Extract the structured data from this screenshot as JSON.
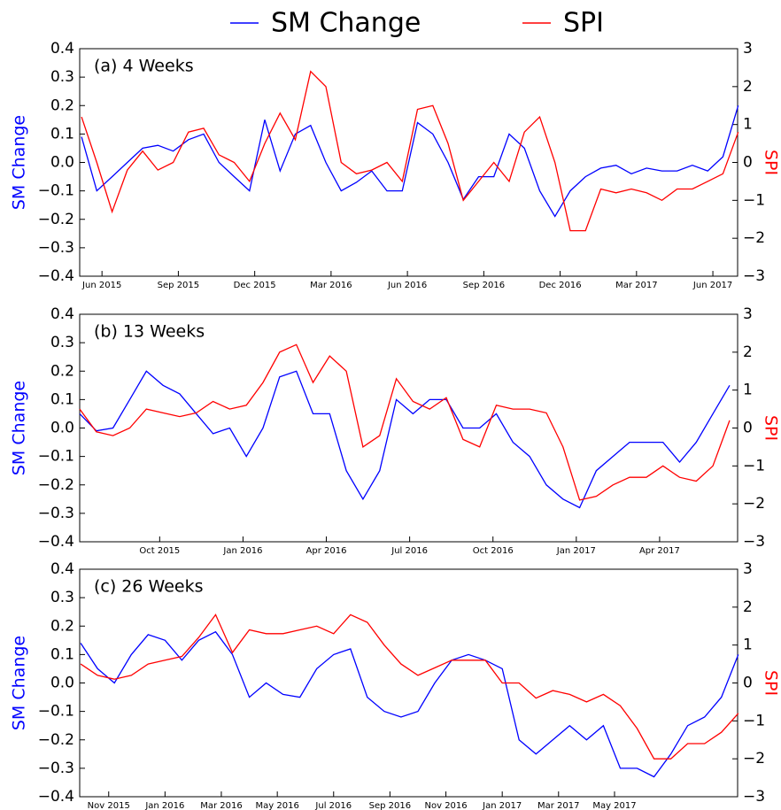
{
  "chart_data": [
    {
      "type": "line",
      "title": "(a) 4 Weeks",
      "ylabel": "SM Change",
      "y2label": "SPI",
      "x": [
        2015.35,
        2015.4,
        2015.45,
        2015.5,
        2015.55,
        2015.6,
        2015.65,
        2015.7,
        2015.75,
        2015.8,
        2015.85,
        2015.9,
        2015.95,
        2016.0,
        2016.05,
        2016.1,
        2016.15,
        2016.2,
        2016.25,
        2016.3,
        2016.35,
        2016.4,
        2016.45,
        2016.5,
        2016.55,
        2016.6,
        2016.65,
        2016.7,
        2016.75,
        2016.8,
        2016.85,
        2016.9,
        2016.95,
        2017.0,
        2017.05,
        2017.1,
        2017.15,
        2017.2,
        2017.25,
        2017.3,
        2017.35,
        2017.4,
        2017.45,
        2017.5
      ],
      "series": [
        {
          "name": "SM Change",
          "color": "#0000ff",
          "values": [
            0.09,
            -0.1,
            -0.05,
            0.0,
            0.05,
            0.06,
            0.04,
            0.08,
            0.1,
            0.0,
            -0.05,
            -0.1,
            0.15,
            -0.03,
            0.1,
            0.13,
            0.0,
            -0.1,
            -0.07,
            -0.03,
            -0.1,
            -0.1,
            0.14,
            0.1,
            0.0,
            -0.13,
            -0.05,
            -0.05,
            0.1,
            0.05,
            -0.1,
            -0.19,
            -0.1,
            -0.05,
            -0.02,
            -0.01,
            -0.04,
            -0.02,
            -0.03,
            -0.03,
            -0.01,
            -0.03,
            0.02,
            0.2
          ]
        },
        {
          "name": "SPI",
          "color": "#ff0000",
          "axis": "y2",
          "values": [
            1.2,
            0,
            -1.3,
            -0.2,
            0.3,
            -0.2,
            0.0,
            0.8,
            0.9,
            0.2,
            0.0,
            -0.5,
            0.5,
            1.3,
            0.6,
            2.4,
            2.0,
            0.0,
            -0.3,
            -0.2,
            0.0,
            -0.5,
            1.4,
            1.5,
            0.5,
            -1.0,
            -0.5,
            0.0,
            -0.5,
            0.8,
            1.2,
            0.0,
            -1.8,
            -1.8,
            -0.7,
            -0.8,
            -0.7,
            -0.8,
            -1.0,
            -0.7,
            -0.7,
            -0.5,
            -0.3,
            0.8
          ]
        }
      ],
      "xlim": [
        2015.344,
        2017.498
      ],
      "xticks": [
        {
          "value": 2015.417,
          "label": "Jun 2015"
        },
        {
          "value": 2015.667,
          "label": "Sep 2015"
        },
        {
          "value": 2015.917,
          "label": "Dec 2015"
        },
        {
          "value": 2016.167,
          "label": "Mar 2016"
        },
        {
          "value": 2016.417,
          "label": "Jun 2016"
        },
        {
          "value": 2016.667,
          "label": "Sep 2016"
        },
        {
          "value": 2016.917,
          "label": "Dec 2016"
        },
        {
          "value": 2017.167,
          "label": "Mar 2017"
        },
        {
          "value": 2017.417,
          "label": "Jun 2017"
        }
      ],
      "ylim": [
        -0.4,
        0.4
      ],
      "yticks": [
        {
          "value": -0.4,
          "label": "−0.4"
        },
        {
          "value": -0.3,
          "label": "−0.3"
        },
        {
          "value": -0.2,
          "label": "−0.2"
        },
        {
          "value": -0.1,
          "label": "−0.1"
        },
        {
          "value": 0.0,
          "label": "0.0"
        },
        {
          "value": 0.1,
          "label": "0.1"
        },
        {
          "value": 0.2,
          "label": "0.2"
        },
        {
          "value": 0.3,
          "label": "0.3"
        },
        {
          "value": 0.4,
          "label": "0.4"
        }
      ],
      "y2lim": [
        -3,
        3
      ],
      "y2ticks": [
        {
          "value": -3,
          "label": "−3"
        },
        {
          "value": -2,
          "label": "−2"
        },
        {
          "value": -1,
          "label": "−1"
        },
        0,
        1,
        2,
        3
      ]
    },
    {
      "type": "line",
      "title": "(b) 13 Weeks",
      "ylabel": "SM Change",
      "y2label": "SPI",
      "x": [
        2015.51,
        2015.56,
        2015.61,
        2015.66,
        2015.71,
        2015.76,
        2015.81,
        2015.86,
        2015.91,
        2015.96,
        2016.01,
        2016.06,
        2016.11,
        2016.16,
        2016.21,
        2016.26,
        2016.31,
        2016.36,
        2016.41,
        2016.46,
        2016.51,
        2016.56,
        2016.61,
        2016.66,
        2016.71,
        2016.76,
        2016.81,
        2016.86,
        2016.91,
        2016.96,
        2017.01,
        2017.06,
        2017.11,
        2017.16,
        2017.21,
        2017.26,
        2017.31,
        2017.36,
        2017.41,
        2017.46
      ],
      "series": [
        {
          "color": "#0000ff",
          "values": [
            0.05,
            -0.01,
            0.0,
            0.1,
            0.2,
            0.15,
            0.12,
            0.05,
            -0.02,
            0.0,
            -0.1,
            0.0,
            0.18,
            0.2,
            0.05,
            0.05,
            -0.15,
            -0.25,
            -0.15,
            0.1,
            0.05,
            0.1,
            0.1,
            0.0,
            0.0,
            0.05,
            -0.05,
            -0.1,
            -0.2,
            -0.25,
            -0.28,
            -0.15,
            -0.1,
            -0.05,
            -0.05,
            -0.05,
            -0.12,
            -0.05,
            0.05,
            0.15
          ]
        },
        {
          "color": "#ff0000",
          "axis": "y2",
          "values": [
            0.5,
            -0.1,
            -0.2,
            0.0,
            0.5,
            0.4,
            0.3,
            0.4,
            0.7,
            0.5,
            0.6,
            1.2,
            2.0,
            2.2,
            1.2,
            1.9,
            1.5,
            -0.5,
            -0.2,
            1.3,
            0.7,
            0.5,
            0.8,
            -0.3,
            -0.5,
            0.6,
            0.5,
            0.5,
            0.4,
            -0.5,
            -1.9,
            -1.8,
            -1.5,
            -1.3,
            -1.3,
            -1.0,
            -1.3,
            -1.4,
            -1.0,
            0.2
          ]
        }
      ],
      "xlim": [
        2015.51,
        2017.484
      ],
      "xticks": [
        {
          "value": 2015.75,
          "label": "Oct 2015"
        },
        {
          "value": 2016.0,
          "label": "Jan 2016"
        },
        {
          "value": 2016.25,
          "label": "Apr 2016"
        },
        {
          "value": 2016.5,
          "label": "Jul 2016"
        },
        {
          "value": 2016.75,
          "label": "Oct 2016"
        },
        {
          "value": 2017.0,
          "label": "Jan 2017"
        },
        {
          "value": 2017.25,
          "label": "Apr 2017"
        }
      ],
      "ylim": [
        -0.4,
        0.4
      ],
      "yticks": [
        {
          "value": -0.4,
          "label": "−0.4"
        },
        {
          "value": -0.3,
          "label": "−0.3"
        },
        {
          "value": -0.2,
          "label": "−0.2"
        },
        {
          "value": -0.1,
          "label": "−0.1"
        },
        {
          "value": 0.0,
          "label": "0.0"
        },
        {
          "value": 0.1,
          "label": "0.1"
        },
        {
          "value": 0.2,
          "label": "0.2"
        },
        {
          "value": 0.3,
          "label": "0.3"
        },
        {
          "value": 0.4,
          "label": "0.4"
        }
      ],
      "y2lim": [
        -3,
        3
      ],
      "y2ticks": [
        {
          "value": -3,
          "label": "−3"
        },
        {
          "value": -2,
          "label": "−2"
        },
        {
          "value": -1,
          "label": "−1"
        },
        0,
        1,
        2,
        3
      ]
    },
    {
      "type": "line",
      "title": "(c) 26 Weeks",
      "ylabel": "SM Change",
      "y2label": "SPI",
      "x": [
        2015.75,
        2015.8,
        2015.85,
        2015.9,
        2015.95,
        2016.0,
        2016.05,
        2016.1,
        2016.15,
        2016.2,
        2016.25,
        2016.3,
        2016.35,
        2016.4,
        2016.45,
        2016.5,
        2016.55,
        2016.6,
        2016.65,
        2016.7,
        2016.75,
        2016.8,
        2016.85,
        2016.9,
        2016.95,
        2017.0,
        2017.05,
        2017.1,
        2017.15,
        2017.2,
        2017.25,
        2017.3,
        2017.35,
        2017.4,
        2017.45,
        2017.5,
        2017.55,
        2017.6,
        2017.65,
        2017.7
      ],
      "series": [
        {
          "color": "#0000ff",
          "values": [
            0.14,
            0.05,
            0.0,
            0.1,
            0.17,
            0.15,
            0.08,
            0.15,
            0.18,
            0.1,
            -0.05,
            0.0,
            -0.04,
            -0.05,
            0.05,
            0.1,
            0.12,
            -0.05,
            -0.1,
            -0.12,
            -0.1,
            0.0,
            0.08,
            0.1,
            0.08,
            0.05,
            -0.2,
            -0.25,
            -0.2,
            -0.15,
            -0.2,
            -0.15,
            -0.3,
            -0.3,
            -0.33,
            -0.25,
            -0.15,
            -0.12,
            -0.05,
            0.1
          ]
        },
        {
          "color": "#ff0000",
          "axis": "y2",
          "values": [
            0.5,
            0.2,
            0.1,
            0.2,
            0.5,
            0.6,
            0.7,
            1.2,
            1.8,
            0.8,
            1.4,
            1.3,
            1.3,
            1.4,
            1.5,
            1.3,
            1.8,
            1.6,
            1.0,
            0.5,
            0.2,
            0.4,
            0.6,
            0.6,
            0.6,
            0.0,
            0.0,
            -0.4,
            -0.2,
            -0.3,
            -0.5,
            -0.3,
            -0.6,
            -1.2,
            -2.0,
            -2.0,
            -1.6,
            -1.6,
            -1.3,
            -0.8
          ]
        }
      ],
      "xlim": [
        2015.747,
        2017.698
      ],
      "xticks": [
        {
          "value": 2015.833,
          "label": "Nov 2015"
        },
        {
          "value": 2016.0,
          "label": "Jan 2016"
        },
        {
          "value": 2016.167,
          "label": "Mar 2016"
        },
        {
          "value": 2016.333,
          "label": "May 2016"
        },
        {
          "value": 2016.5,
          "label": "Jul 2016"
        },
        {
          "value": 2016.667,
          "label": "Sep 2016"
        },
        {
          "value": 2016.833,
          "label": "Nov 2016"
        },
        {
          "value": 2017.0,
          "label": "Jan 2017"
        },
        {
          "value": 2017.167,
          "label": "Mar 2017"
        },
        {
          "value": 2017.333,
          "label": "May 2017"
        }
      ],
      "ylim": [
        -0.4,
        0.4
      ],
      "yticks": [
        {
          "value": -0.4,
          "label": "−0.4"
        },
        {
          "value": -0.3,
          "label": "−0.3"
        },
        {
          "value": -0.2,
          "label": "−0.2"
        },
        {
          "value": -0.1,
          "label": "−0.1"
        },
        {
          "value": 0.0,
          "label": "0.0"
        },
        {
          "value": 0.1,
          "label": "0.1"
        },
        {
          "value": 0.2,
          "label": "0.2"
        },
        {
          "value": 0.3,
          "label": "0.3"
        },
        {
          "value": 0.4,
          "label": "0.4"
        }
      ],
      "y2lim": [
        -3,
        3
      ],
      "y2ticks": [
        {
          "value": -3,
          "label": "−3"
        },
        {
          "value": -2,
          "label": "−2"
        },
        {
          "value": -1,
          "label": "−1"
        },
        0,
        1,
        2,
        3
      ]
    }
  ]
}
